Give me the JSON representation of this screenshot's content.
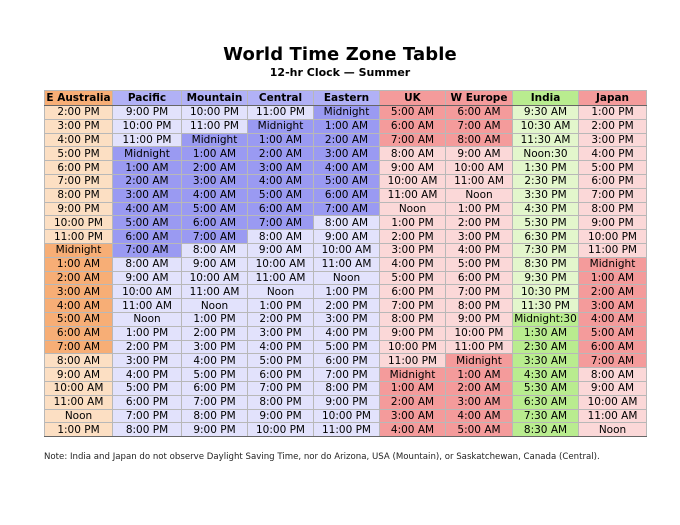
{
  "title": "World Time Zone Table",
  "subtitle": "12-hr Clock — Summer",
  "columns": [
    {
      "label": "E Australia",
      "base": "#fcdfc3",
      "hdr": "#f7ae76"
    },
    {
      "label": "Pacific",
      "base": "#e2e2fc",
      "hdr": "#b1b1f6"
    },
    {
      "label": "Mountain",
      "base": "#e2e2fc",
      "hdr": "#b1b1f6"
    },
    {
      "label": "Central",
      "base": "#e2e2fc",
      "hdr": "#b1b1f6"
    },
    {
      "label": "Eastern",
      "base": "#e2e2fc",
      "hdr": "#b1b1f6"
    },
    {
      "label": "UK",
      "base": "#fbd8d8",
      "hdr": "#f49b9b"
    },
    {
      "label": "W Europe",
      "base": "#fbd8d8",
      "hdr": "#f49b9b"
    },
    {
      "label": "India",
      "base": "#e3f6cc",
      "hdr": "#b9ec8f"
    },
    {
      "label": "Japan",
      "base": "#fbd8d8",
      "hdr": "#f49b9b"
    }
  ],
  "rows": [
    [
      "2:00 PM",
      "9:00 PM",
      "10:00 PM",
      "11:00 PM",
      "Midnight",
      "5:00 AM",
      "6:00 AM",
      "9:30 AM",
      "1:00 PM"
    ],
    [
      "3:00 PM",
      "10:00 PM",
      "11:00 PM",
      "Midnight",
      "1:00 AM",
      "6:00 AM",
      "7:00 AM",
      "10:30 AM",
      "2:00 PM"
    ],
    [
      "4:00 PM",
      "11:00 PM",
      "Midnight",
      "1:00 AM",
      "2:00 AM",
      "7:00 AM",
      "8:00 AM",
      "11:30 AM",
      "3:00 PM"
    ],
    [
      "5:00 PM",
      "Midnight",
      "1:00 AM",
      "2:00 AM",
      "3:00 AM",
      "8:00 AM",
      "9:00 AM",
      "Noon:30",
      "4:00 PM"
    ],
    [
      "6:00 PM",
      "1:00 AM",
      "2:00 AM",
      "3:00 AM",
      "4:00 AM",
      "9:00 AM",
      "10:00 AM",
      "1:30 PM",
      "5:00 PM"
    ],
    [
      "7:00 PM",
      "2:00 AM",
      "3:00 AM",
      "4:00 AM",
      "5:00 AM",
      "10:00 AM",
      "11:00 AM",
      "2:30 PM",
      "6:00 PM"
    ],
    [
      "8:00 PM",
      "3:00 AM",
      "4:00 AM",
      "5:00 AM",
      "6:00 AM",
      "11:00 AM",
      "Noon",
      "3:30 PM",
      "7:00 PM"
    ],
    [
      "9:00 PM",
      "4:00 AM",
      "5:00 AM",
      "6:00 AM",
      "7:00 AM",
      "Noon",
      "1:00 PM",
      "4:30 PM",
      "8:00 PM"
    ],
    [
      "10:00 PM",
      "5:00 AM",
      "6:00 AM",
      "7:00 AM",
      "8:00 AM",
      "1:00 PM",
      "2:00 PM",
      "5:30 PM",
      "9:00 PM"
    ],
    [
      "11:00 PM",
      "6:00 AM",
      "7:00 AM",
      "8:00 AM",
      "9:00 AM",
      "2:00 PM",
      "3:00 PM",
      "6:30 PM",
      "10:00 PM"
    ],
    [
      "Midnight",
      "7:00 AM",
      "8:00 AM",
      "9:00 AM",
      "10:00 AM",
      "3:00 PM",
      "4:00 PM",
      "7:30 PM",
      "11:00 PM"
    ],
    [
      "1:00 AM",
      "8:00 AM",
      "9:00 AM",
      "10:00 AM",
      "11:00 AM",
      "4:00 PM",
      "5:00 PM",
      "8:30 PM",
      "Midnight"
    ],
    [
      "2:00 AM",
      "9:00 AM",
      "10:00 AM",
      "11:00 AM",
      "Noon",
      "5:00 PM",
      "6:00 PM",
      "9:30 PM",
      "1:00 AM"
    ],
    [
      "3:00 AM",
      "10:00 AM",
      "11:00 AM",
      "Noon",
      "1:00 PM",
      "6:00 PM",
      "7:00 PM",
      "10:30 PM",
      "2:00 AM"
    ],
    [
      "4:00 AM",
      "11:00 AM",
      "Noon",
      "1:00 PM",
      "2:00 PM",
      "7:00 PM",
      "8:00 PM",
      "11:30 PM",
      "3:00 AM"
    ],
    [
      "5:00 AM",
      "Noon",
      "1:00 PM",
      "2:00 PM",
      "3:00 PM",
      "8:00 PM",
      "9:00 PM",
      "Midnight:30",
      "4:00 AM"
    ],
    [
      "6:00 AM",
      "1:00 PM",
      "2:00 PM",
      "3:00 PM",
      "4:00 PM",
      "9:00 PM",
      "10:00 PM",
      "1:30 AM",
      "5:00 AM"
    ],
    [
      "7:00 AM",
      "2:00 PM",
      "3:00 PM",
      "4:00 PM",
      "5:00 PM",
      "10:00 PM",
      "11:00 PM",
      "2:30 AM",
      "6:00 AM"
    ],
    [
      "8:00 AM",
      "3:00 PM",
      "4:00 PM",
      "5:00 PM",
      "6:00 PM",
      "11:00 PM",
      "Midnight",
      "3:30 AM",
      "7:00 AM"
    ],
    [
      "9:00 AM",
      "4:00 PM",
      "5:00 PM",
      "6:00 PM",
      "7:00 PM",
      "Midnight",
      "1:00 AM",
      "4:30 AM",
      "8:00 AM"
    ],
    [
      "10:00 AM",
      "5:00 PM",
      "6:00 PM",
      "7:00 PM",
      "8:00 PM",
      "1:00 AM",
      "2:00 AM",
      "5:30 AM",
      "9:00 AM"
    ],
    [
      "11:00 AM",
      "6:00 PM",
      "7:00 PM",
      "8:00 PM",
      "9:00 PM",
      "2:00 AM",
      "3:00 AM",
      "6:30 AM",
      "10:00 AM"
    ],
    [
      "Noon",
      "7:00 PM",
      "8:00 PM",
      "9:00 PM",
      "10:00 PM",
      "3:00 AM",
      "4:00 AM",
      "7:30 AM",
      "11:00 AM"
    ],
    [
      "1:00 PM",
      "8:00 PM",
      "9:00 PM",
      "10:00 PM",
      "11:00 PM",
      "4:00 AM",
      "5:00 AM",
      "8:30 AM",
      "Noon"
    ]
  ],
  "highlight_colors": {
    "E Australia": "#f7ae76",
    "Pacific": "#9a9af2",
    "Mountain": "#9a9af2",
    "Central": "#9a9af2",
    "Eastern": "#9a9af2",
    "UK": "#f49b9b",
    "W Europe": "#f49b9b",
    "India": "#b9ec8f",
    "Japan": "#f49b9b"
  },
  "highlighted_cells": {
    "E Australia": [
      10,
      11,
      12,
      13,
      14,
      15,
      16,
      17
    ],
    "Pacific": [
      3,
      4,
      5,
      6,
      7,
      8,
      9,
      10
    ],
    "Mountain": [
      2,
      3,
      4,
      5,
      6,
      7,
      8,
      9
    ],
    "Central": [
      1,
      2,
      3,
      4,
      5,
      6,
      7,
      8
    ],
    "Eastern": [
      0,
      1,
      2,
      3,
      4,
      5,
      6,
      7
    ],
    "UK": [
      0,
      1,
      2,
      19,
      20,
      21,
      22,
      23
    ],
    "W Europe": [
      0,
      1,
      2,
      18,
      19,
      20,
      21,
      22,
      23
    ],
    "India": [
      15,
      16,
      17,
      18,
      19,
      20,
      21,
      22,
      23
    ],
    "Japan": [
      11,
      12,
      13,
      14,
      15,
      16,
      17,
      18
    ]
  },
  "note": "Note: India and Japan do not observe Daylight Saving Time, nor do Arizona, USA (Mountain), or Saskatchewan, Canada (Central)."
}
